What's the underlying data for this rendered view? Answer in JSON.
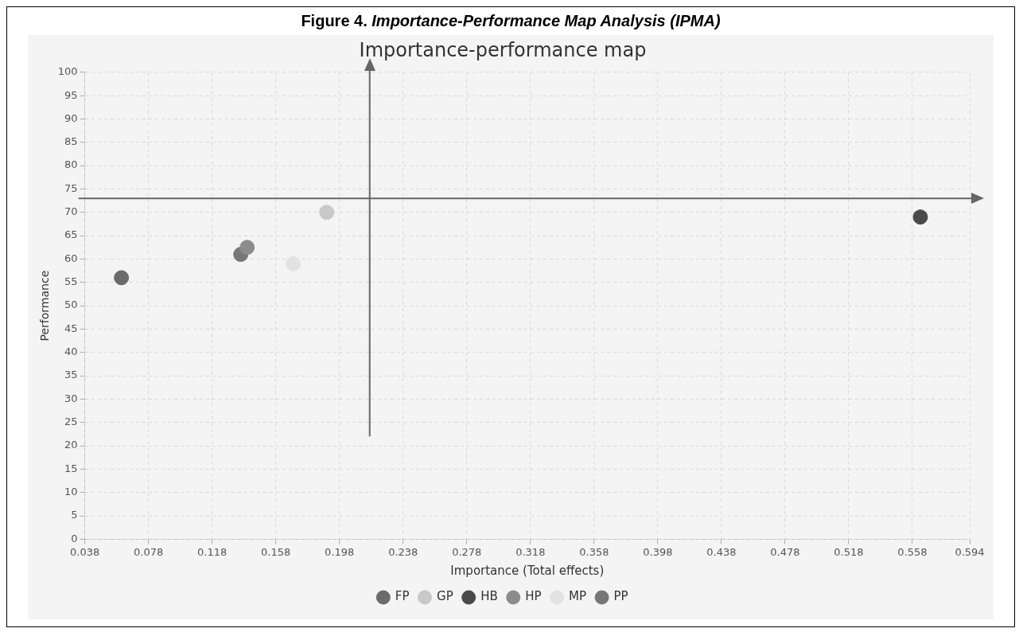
{
  "chart_data": {
    "type": "scatter",
    "title": "Importance-performance map",
    "xlabel": "Importance (Total effects)",
    "ylabel": "Performance",
    "annotations": [
      "Figure 4. Importance-Performance Map Analysis (IPMA)"
    ],
    "xlim": [
      0.038,
      0.594
    ],
    "xticks": [
      0.038,
      0.078,
      0.118,
      0.158,
      0.198,
      0.238,
      0.278,
      0.318,
      0.358,
      0.398,
      0.438,
      0.478,
      0.518,
      0.558,
      0.594
    ],
    "ylim": [
      0,
      100
    ],
    "yticks": [
      0,
      5,
      10,
      15,
      20,
      25,
      30,
      35,
      40,
      45,
      50,
      55,
      60,
      65,
      70,
      75,
      80,
      85,
      90,
      95,
      100
    ],
    "grid": true,
    "legend": "bottom",
    "marker": "circle",
    "ref_lines": [
      {
        "axis": "x",
        "value": 0.217,
        "color": "#666666"
      },
      {
        "axis": "y",
        "value": 73,
        "color": "#666666"
      }
    ],
    "series": [
      {
        "name": "FP",
        "color": "#6b6b6b",
        "x": [
          0.061
        ],
        "values": [
          56
        ]
      },
      {
        "name": "GP",
        "color": "#c8c8c8",
        "x": [
          0.19
        ],
        "values": [
          70
        ]
      },
      {
        "name": "HB",
        "color": "#4a4a4a",
        "x": [
          0.563
        ],
        "values": [
          69
        ]
      },
      {
        "name": "HP",
        "color": "#8c8c8c",
        "x": [
          0.14
        ],
        "values": [
          62.5
        ]
      },
      {
        "name": "MP",
        "color": "#e2e2e2",
        "x": [
          0.169
        ],
        "values": [
          59
        ]
      },
      {
        "name": "PP",
        "color": "#777777",
        "x": [
          0.136
        ],
        "values": [
          61
        ]
      }
    ]
  }
}
